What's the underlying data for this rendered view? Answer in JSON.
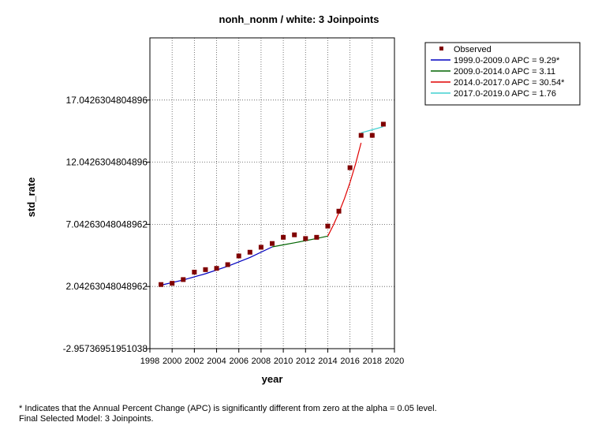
{
  "chart_data": {
    "type": "scatter",
    "title": "nonh_nonm / white: 3 Joinpoints",
    "xlabel": "year",
    "ylabel": "std_rate",
    "xlim": [
      1998,
      2020
    ],
    "ylim": [
      -2.95736951951038,
      22.0426304804896
    ],
    "x_ticks": [
      1998,
      2000,
      2002,
      2004,
      2006,
      2008,
      2010,
      2012,
      2014,
      2016,
      2018,
      2020
    ],
    "y_ticks": [
      {
        "value": -2.95736951951038,
        "label": "-2.95736951951038"
      },
      {
        "value": 2.04263048048962,
        "label": "2.04263048048962"
      },
      {
        "value": 7.04263048048962,
        "label": "7.04263048048962"
      },
      {
        "value": 12.0426304804896,
        "label": "12.0426304804896"
      },
      {
        "value": 17.0426304804896,
        "label": "17.0426304804896"
      }
    ],
    "grid": true,
    "legend_position": "top-right",
    "observed": {
      "name": "Observed",
      "color": "#800000",
      "x": [
        1999,
        2000,
        2001,
        2002,
        2003,
        2004,
        2005,
        2006,
        2007,
        2008,
        2009,
        2010,
        2011,
        2012,
        2013,
        2014,
        2015,
        2016,
        2017,
        2018,
        2019
      ],
      "y": [
        2.2,
        2.3,
        2.6,
        3.2,
        3.4,
        3.5,
        3.8,
        4.5,
        4.8,
        5.2,
        5.5,
        6.0,
        6.2,
        5.9,
        6.0,
        6.9,
        8.1,
        11.6,
        14.2,
        14.2,
        15.1
      ]
    },
    "series": [
      {
        "name": "1999.0-2009.0 APC  =  9.29*",
        "color": "#0000c0",
        "x": [
          1999,
          2001,
          2003,
          2005,
          2007,
          2009
        ],
        "y": [
          2.15,
          2.57,
          3.07,
          3.67,
          4.38,
          5.23
        ]
      },
      {
        "name": "2009.0-2014.0 APC  =  3.11",
        "color": "#006400",
        "x": [
          2009,
          2010,
          2011,
          2012,
          2013,
          2014
        ],
        "y": [
          5.23,
          5.39,
          5.56,
          5.73,
          5.91,
          6.1
        ]
      },
      {
        "name": "2014.0-2017.0 APC  =  30.54*",
        "color": "#e00000",
        "x": [
          2014,
          2014.5,
          2015,
          2015.5,
          2016,
          2016.5,
          2017
        ],
        "y": [
          6.1,
          6.97,
          7.97,
          9.11,
          10.4,
          11.9,
          13.6
        ]
      },
      {
        "name": "2017.0-2019.0 APC  =  1.76",
        "color": "#40d0d0",
        "x": [
          2017,
          2018,
          2019
        ],
        "y": [
          14.4,
          14.65,
          14.9
        ]
      }
    ]
  },
  "footnote": {
    "line1": "* Indicates that the Annual Percent Change (APC) is significantly different from zero at the alpha = 0.05 level.",
    "line2": "Final Selected Model: 3 Joinpoints."
  }
}
